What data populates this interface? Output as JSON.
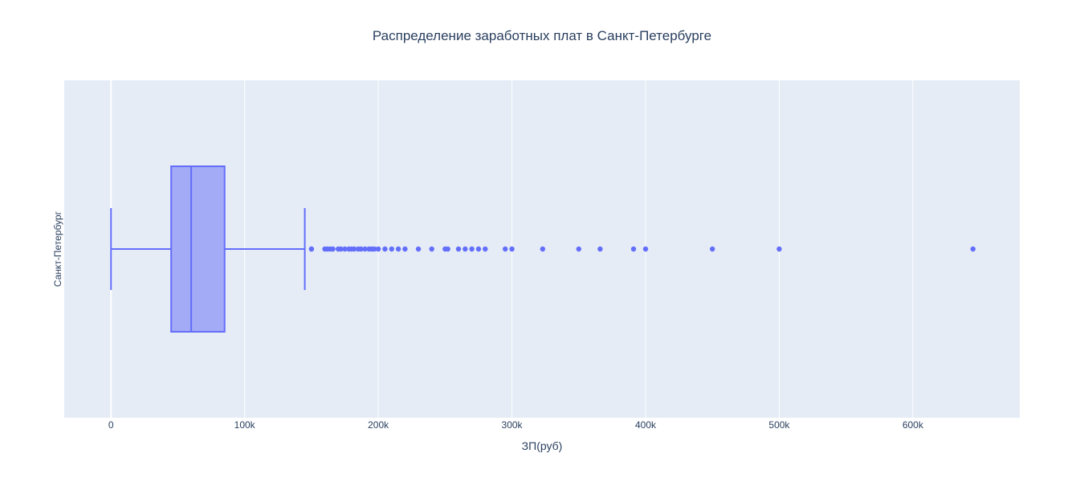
{
  "chart_data": {
    "type": "box",
    "title": "Распределение заработных плат в Санкт-Петербурге",
    "xlabel": "ЗП(руб)",
    "ylabel": "",
    "xlim": [
      -35000,
      680000
    ],
    "x_ticks": [
      0,
      100000,
      200000,
      300000,
      400000,
      500000,
      600000
    ],
    "x_tick_labels": [
      "0",
      "100k",
      "200k",
      "300k",
      "400k",
      "500k",
      "600k"
    ],
    "grid": true,
    "orientation": "horizontal",
    "categories": [
      "Санкт-Петербург"
    ],
    "series": [
      {
        "category": "Санкт-Петербург",
        "min": 0,
        "q1": 45000,
        "median": 60000,
        "q3": 85000,
        "max": 145000,
        "outliers": [
          150000,
          150000,
          160000,
          162000,
          164000,
          166000,
          170000,
          172000,
          175000,
          178000,
          180000,
          182000,
          185000,
          187000,
          190000,
          193000,
          195000,
          197000,
          200000,
          205000,
          210000,
          215000,
          220000,
          230000,
          240000,
          250000,
          252000,
          260000,
          265000,
          270000,
          275000,
          280000,
          295000,
          300000,
          323000,
          350000,
          366000,
          391000,
          400000,
          450000,
          500000,
          645000
        ]
      }
    ],
    "colors": {
      "box_line": "#636efa",
      "box_fill": "#a3aaf6",
      "plot_bg": "#e5ecf6",
      "grid": "#ffffff",
      "text": "#2a3f5f"
    }
  }
}
